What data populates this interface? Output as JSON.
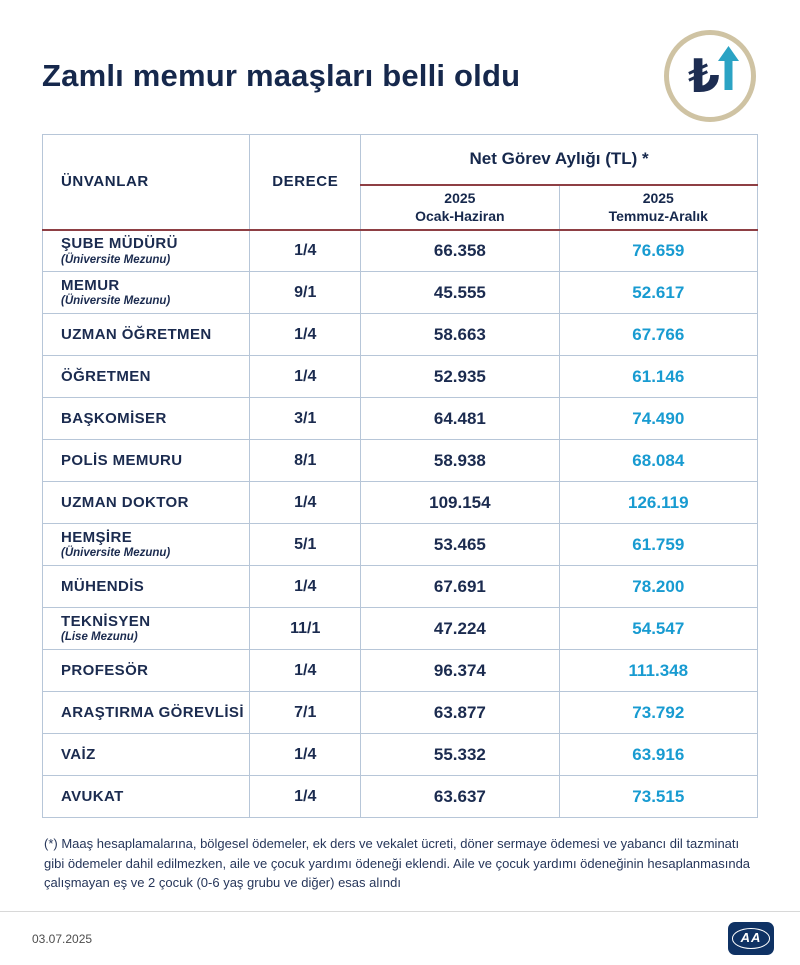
{
  "header": {
    "title": "Zamlı memur maaşları belli oldu",
    "lira_symbol": "₺",
    "colors": {
      "circle_border": "#cfc3a3",
      "arrow": "#2ba3c4",
      "title": "#16284c"
    }
  },
  "chart_data": {
    "type": "table",
    "title": "Zamlı memur maaşları belli oldu",
    "columns": {
      "unvanlar": "ÜNVANLAR",
      "derece": "DERECE",
      "group": "Net Görev Aylığı (TL) *",
      "sub1_year": "2025",
      "sub1_period": "Ocak-Haziran",
      "sub2_year": "2025",
      "sub2_period": "Temmuz-Aralık"
    },
    "rows": [
      {
        "title": "ŞUBE MÜDÜRÜ",
        "note": "(Üniversite Mezunu)",
        "degree": "1/4",
        "jan_jun": "66.358",
        "jul_dec": "76.659"
      },
      {
        "title": "MEMUR",
        "note": "(Üniversite Mezunu)",
        "degree": "9/1",
        "jan_jun": "45.555",
        "jul_dec": "52.617"
      },
      {
        "title": "UZMAN ÖĞRETMEN",
        "note": "",
        "degree": "1/4",
        "jan_jun": "58.663",
        "jul_dec": "67.766"
      },
      {
        "title": "ÖĞRETMEN",
        "note": "",
        "degree": "1/4",
        "jan_jun": "52.935",
        "jul_dec": "61.146"
      },
      {
        "title": "BAŞKOMİSER",
        "note": "",
        "degree": "3/1",
        "jan_jun": "64.481",
        "jul_dec": "74.490"
      },
      {
        "title": "POLİS MEMURU",
        "note": "",
        "degree": "8/1",
        "jan_jun": "58.938",
        "jul_dec": "68.084"
      },
      {
        "title": "UZMAN DOKTOR",
        "note": "",
        "degree": "1/4",
        "jan_jun": "109.154",
        "jul_dec": "126.119"
      },
      {
        "title": "HEMŞİRE",
        "note": "(Üniversite Mezunu)",
        "degree": "5/1",
        "jan_jun": "53.465",
        "jul_dec": "61.759"
      },
      {
        "title": "MÜHENDİS",
        "note": "",
        "degree": "1/4",
        "jan_jun": "67.691",
        "jul_dec": "78.200"
      },
      {
        "title": "TEKNİSYEN",
        "note": "(Lise Mezunu)",
        "degree": "11/1",
        "jan_jun": "47.224",
        "jul_dec": "54.547"
      },
      {
        "title": "PROFESÖR",
        "note": "",
        "degree": "1/4",
        "jan_jun": "96.374",
        "jul_dec": "111.348"
      },
      {
        "title": "ARAŞTIRMA GÖREVLİSİ",
        "note": "",
        "degree": "7/1",
        "jan_jun": "63.877",
        "jul_dec": "73.792"
      },
      {
        "title": "VAİZ",
        "note": "",
        "degree": "1/4",
        "jan_jun": "55.332",
        "jul_dec": "63.916"
      },
      {
        "title": "AVUKAT",
        "note": "",
        "degree": "1/4",
        "jan_jun": "63.637",
        "jul_dec": "73.515"
      }
    ],
    "value_colors": {
      "jan_jun": "#1b2b4f",
      "jul_dec": "#189bd1"
    },
    "layout": {
      "grid": "full-borders",
      "border_color": "#b7c6d8",
      "header_accent_line": "#8e3f44"
    }
  },
  "footnote": "(*) Maaş hesaplamalarına, bölgesel ödemeler, ek ders ve vekalet ücreti, döner sermaye ödemesi ve yabancı dil tazminatı gibi ödemeler dahil edilmezken, aile ve çocuk yardımı ödeneği eklendi. Aile ve çocuk yardımı ödeneğinin hesaplanmasında çalışmayan eş ve 2 çocuk (0-6 yaş grubu ve diğer) esas alındı",
  "footer": {
    "date": "03.07.2025",
    "logo": "AA"
  }
}
